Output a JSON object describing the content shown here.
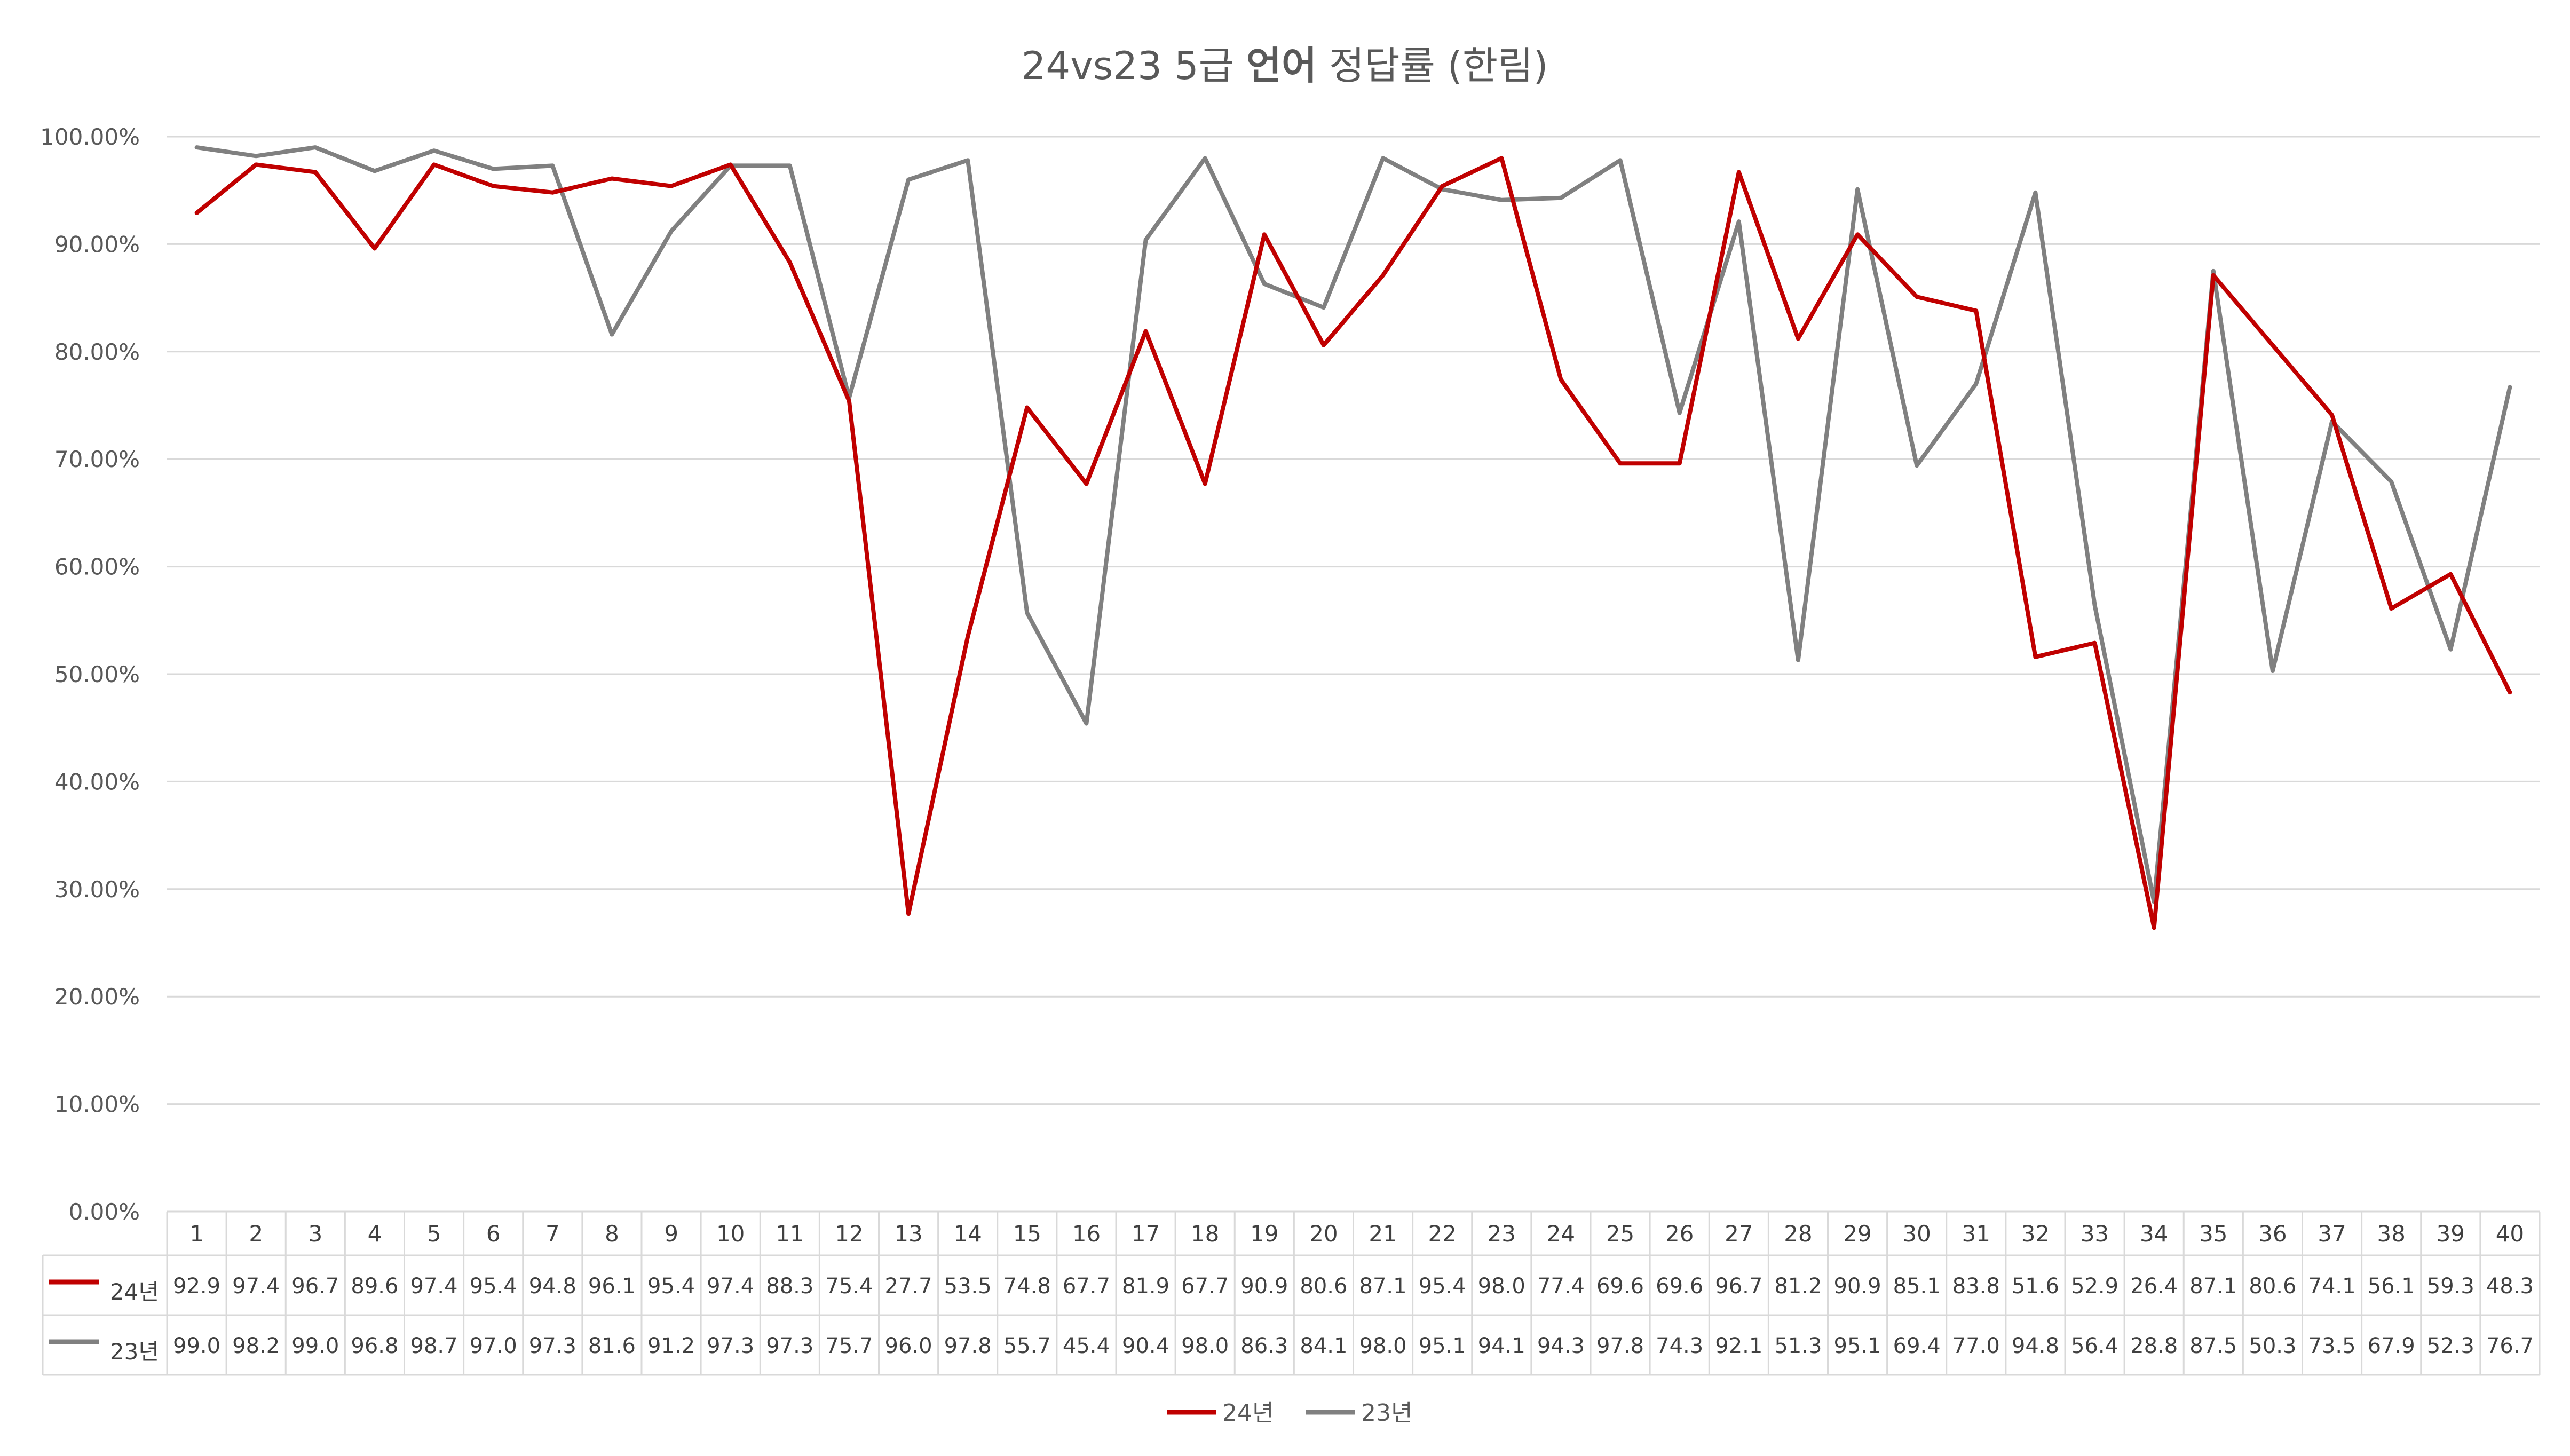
{
  "chart_data": {
    "type": "line",
    "title_parts": [
      {
        "text": "24vs23 5급 ",
        "bold": false
      },
      {
        "text": "언어",
        "bold": true
      },
      {
        "text": " 정답률 (한림)",
        "bold": false
      }
    ],
    "categories": [
      "1",
      "2",
      "3",
      "4",
      "5",
      "6",
      "7",
      "8",
      "9",
      "10",
      "11",
      "12",
      "13",
      "14",
      "15",
      "16",
      "17",
      "18",
      "19",
      "20",
      "21",
      "22",
      "23",
      "24",
      "25",
      "26",
      "27",
      "28",
      "29",
      "30",
      "31",
      "32",
      "33",
      "34",
      "35",
      "36",
      "37",
      "38",
      "39",
      "40"
    ],
    "ylim": [
      0,
      100
    ],
    "y_ticks": [
      0,
      10,
      20,
      30,
      40,
      50,
      60,
      70,
      80,
      90,
      100
    ],
    "y_tick_labels": [
      "0.00%",
      "10.00%",
      "20.00%",
      "30.00%",
      "40.00%",
      "50.00%",
      "60.00%",
      "70.00%",
      "80.00%",
      "90.00%",
      "100.00%"
    ],
    "grid": true,
    "legend_position": "bottom",
    "data_table": true,
    "series": [
      {
        "name": "24년",
        "color": "#C00000",
        "values": [
          92.9,
          97.4,
          96.7,
          89.6,
          97.4,
          95.4,
          94.8,
          96.1,
          95.4,
          97.4,
          88.3,
          75.4,
          27.7,
          53.5,
          74.8,
          67.7,
          81.9,
          67.7,
          90.9,
          80.6,
          87.1,
          95.4,
          98.0,
          77.4,
          69.6,
          69.6,
          96.7,
          81.2,
          90.9,
          85.1,
          83.8,
          51.6,
          52.9,
          26.4,
          87.1,
          80.6,
          74.1,
          56.1,
          59.3,
          48.3
        ],
        "value_labels": [
          "92.9",
          "97.4",
          "96.7",
          "89.6",
          "97.4",
          "95.4",
          "94.8",
          "96.1",
          "95.4",
          "97.4",
          "88.3",
          "75.4",
          "27.7",
          "53.5",
          "74.8",
          "67.7",
          "81.9",
          "67.7",
          "90.9",
          "80.6",
          "87.1",
          "95.4",
          "98.0",
          "77.4",
          "69.6",
          "69.6",
          "96.7",
          "81.2",
          "90.9",
          "85.1",
          "83.8",
          "51.6",
          "52.9",
          "26.4",
          "87.1",
          "80.6",
          "74.1",
          "56.1",
          "59.3",
          "48.3"
        ]
      },
      {
        "name": "23년",
        "color": "#808080",
        "values": [
          99.0,
          98.2,
          99.0,
          96.8,
          98.7,
          97.0,
          97.3,
          81.6,
          91.2,
          97.3,
          97.3,
          75.7,
          96.0,
          97.8,
          55.7,
          45.4,
          90.4,
          98.0,
          86.3,
          84.1,
          98.0,
          95.1,
          94.1,
          94.3,
          97.8,
          74.3,
          92.1,
          51.3,
          95.1,
          69.4,
          77.0,
          94.8,
          56.4,
          28.8,
          87.5,
          50.3,
          73.5,
          67.9,
          52.3,
          76.7
        ],
        "value_labels": [
          "99.0",
          "98.2",
          "99.0",
          "96.8",
          "98.7",
          "97.0",
          "97.3",
          "81.6",
          "91.2",
          "97.3",
          "97.3",
          "75.7",
          "96.0",
          "97.8",
          "55.7",
          "45.4",
          "90.4",
          "98.0",
          "86.3",
          "84.1",
          "98.0",
          "95.1",
          "94.1",
          "94.3",
          "97.8",
          "74.3",
          "92.1",
          "51.3",
          "95.1",
          "69.4",
          "77.0",
          "94.8",
          "56.4",
          "28.8",
          "87.5",
          "50.3",
          "73.5",
          "67.9",
          "52.3",
          "76.7"
        ]
      }
    ]
  }
}
